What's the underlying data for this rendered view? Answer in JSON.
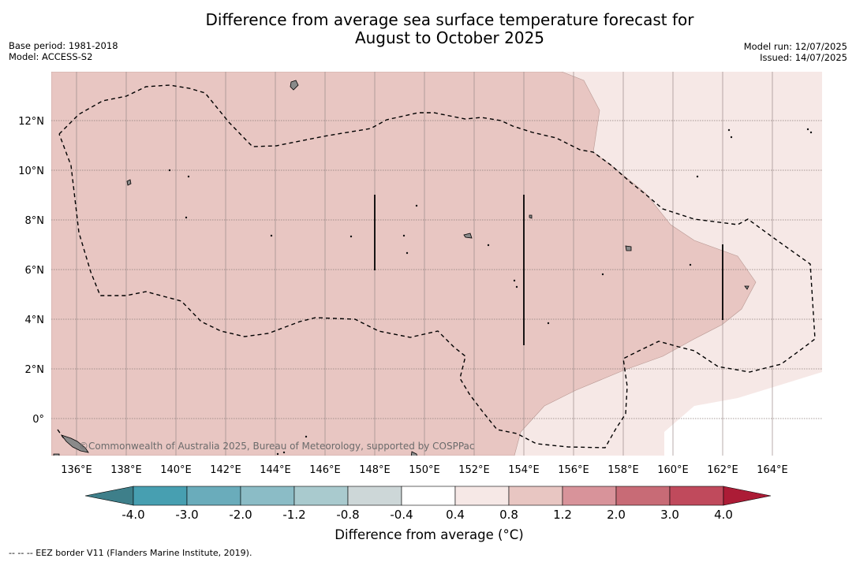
{
  "title_line1": "Difference from average sea surface temperature forecast for",
  "title_line2": "August to October 2025",
  "base_period": "Base period: 1981-2018",
  "model": "Model: ACCESS-S2",
  "model_run": "Model run: 12/07/2025",
  "issued": "Issued: 14/07/2025",
  "credit": "©Commonwealth of Australia 2025, Bureau of Meteorology, supported by COSPPac",
  "lon_labels": [
    "136°E",
    "138°E",
    "140°E",
    "142°E",
    "144°E",
    "146°E",
    "148°E",
    "150°E",
    "152°E",
    "154°E",
    "156°E",
    "158°E",
    "160°E",
    "162°E",
    "164°E"
  ],
  "lat_labels": [
    "12°N",
    "10°N",
    "8°N",
    "6°N",
    "4°N",
    "2°N",
    "0°"
  ],
  "colorbar": {
    "label": "Difference from average (°C)",
    "ticks": [
      "-4.0",
      "-3.0",
      "-2.0",
      "-1.2",
      "-0.8",
      "-0.4",
      "0.4",
      "0.8",
      "1.2",
      "2.0",
      "3.0",
      "4.0"
    ],
    "under_color": "#3e7f8a",
    "colors": [
      "#479fb1",
      "#6aacbb",
      "#8bbcc6",
      "#a9cace",
      "#cdd7d8",
      "#ffffff",
      "#f6e8e6",
      "#e8c6c2",
      "#d8939a",
      "#c86b76",
      "#c04a5c"
    ],
    "over_color": "#ac1c36"
  },
  "legend_note": "--  --  -- EEZ border V11 (Flanders Marine Institute, 2019)."
}
